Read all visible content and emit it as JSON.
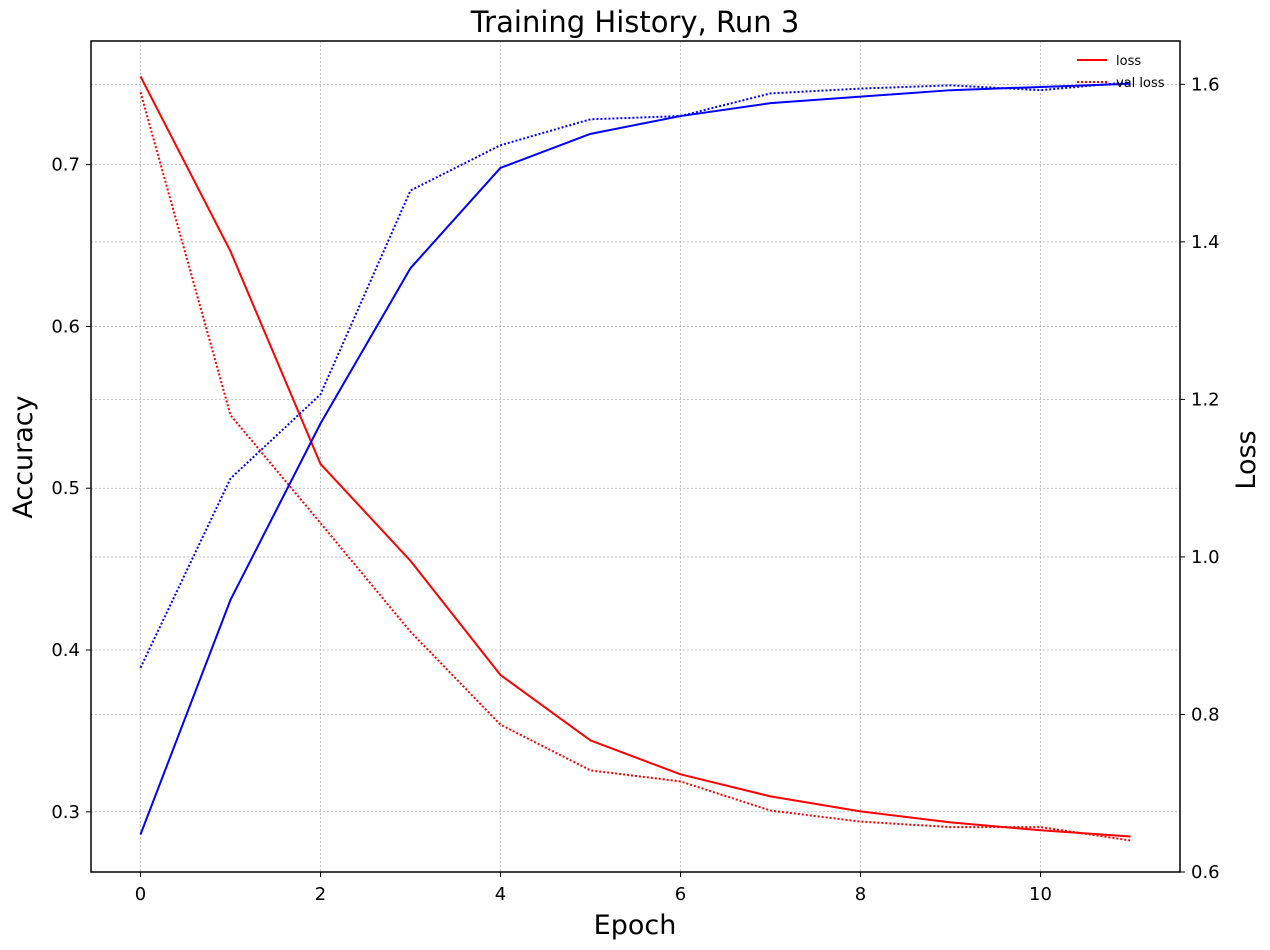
{
  "chart_data": {
    "type": "line",
    "title": "Training History, Run 3",
    "xlabel": "Epoch",
    "ylabel_left": "Accuracy",
    "ylabel_right": "Loss",
    "x": [
      0,
      1,
      2,
      3,
      4,
      5,
      6,
      7,
      8,
      9,
      10,
      11
    ],
    "xlim": [
      -0.55,
      11.55
    ],
    "ylim_left": [
      0.2628,
      0.7764
    ],
    "ylim_right": [
      0.6,
      1.655
    ],
    "x_ticks": [
      0,
      2,
      4,
      6,
      8,
      10
    ],
    "x_tick_labels": [
      "0",
      "2",
      "4",
      "6",
      "8",
      "10"
    ],
    "y_left_ticks": [
      0.3,
      0.4,
      0.5,
      0.6,
      0.7
    ],
    "y_left_tick_labels": [
      "0.3",
      "0.4",
      "0.5",
      "0.6",
      "0.7"
    ],
    "y_right_ticks": [
      0.6,
      0.8,
      1.0,
      1.2,
      1.4,
      1.6
    ],
    "y_right_tick_labels": [
      "0.6",
      "0.8",
      "1.0",
      "1.2",
      "1.4",
      "1.6"
    ],
    "grid": true,
    "legend_position": "top-right",
    "legend": [
      {
        "label": "loss",
        "color": "#ff0000",
        "style": "solid"
      },
      {
        "label": "val loss",
        "color": "#ff0000",
        "style": "dotted"
      }
    ],
    "series": [
      {
        "axis": "right",
        "color": "#ff0000",
        "style": "solid",
        "values": [
          1.61,
          1.388,
          1.118,
          0.995,
          0.85,
          0.767,
          0.724,
          0.696,
          0.677,
          0.663,
          0.653,
          0.645
        ]
      },
      {
        "axis": "right",
        "color": "#ff0000",
        "style": "dotted",
        "values": [
          1.59,
          1.18,
          1.043,
          0.905,
          0.787,
          0.729,
          0.715,
          0.678,
          0.664,
          0.657,
          0.657,
          0.64
        ]
      },
      {
        "axis": "left",
        "color": "#0000ff",
        "style": "solid",
        "values": [
          0.286,
          0.431,
          0.54,
          0.636,
          0.698,
          0.719,
          0.73,
          0.738,
          0.742,
          0.746,
          0.748,
          0.75
        ]
      },
      {
        "axis": "left",
        "color": "#0000ff",
        "style": "dotted",
        "values": [
          0.389,
          0.506,
          0.558,
          0.684,
          0.712,
          0.728,
          0.73,
          0.744,
          0.747,
          0.749,
          0.746,
          0.751
        ]
      }
    ]
  }
}
